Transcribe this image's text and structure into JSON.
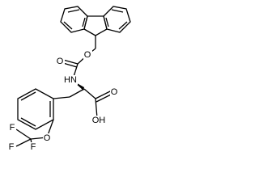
{
  "labels": {
    "ester_o": "O",
    "carbonyl_o": "O",
    "amine": "HN",
    "acid_o": "O",
    "acid_oh": "OH",
    "ether_o": "O",
    "f1": "F",
    "f2": "F",
    "f3": "F"
  }
}
